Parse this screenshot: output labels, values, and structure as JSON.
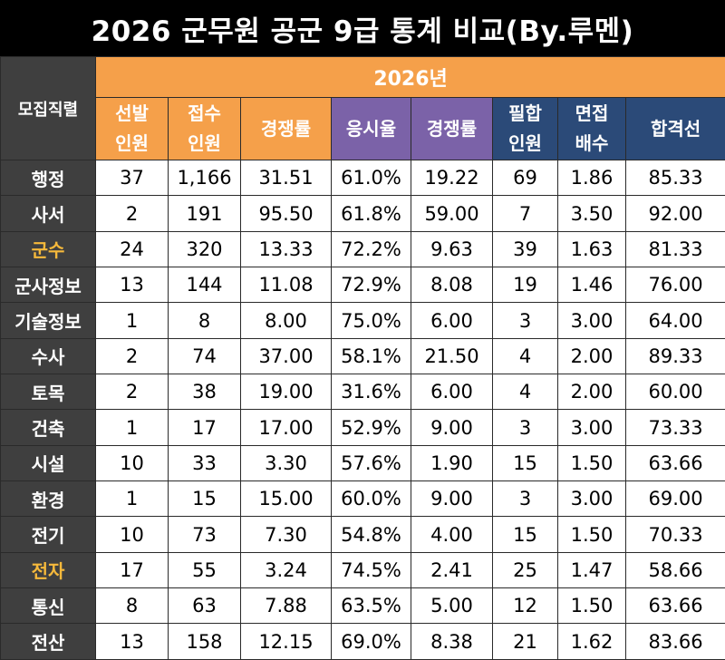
{
  "title": "2026 군무원 공군 9급 통계 비교(By.루멘)",
  "year_header": "2026년",
  "corner_label": "모집직렬",
  "columns": [
    {
      "label1": "선발",
      "label2": "인원",
      "group": "orange"
    },
    {
      "label1": "접수",
      "label2": "인원",
      "group": "orange"
    },
    {
      "label1": "경쟁률",
      "label2": "",
      "group": "orange"
    },
    {
      "label1": "응시율",
      "label2": "",
      "group": "purple"
    },
    {
      "label1": "경쟁률",
      "label2": "",
      "group": "purple"
    },
    {
      "label1": "필합",
      "label2": "인원",
      "group": "navy"
    },
    {
      "label1": "면접",
      "label2": "배수",
      "group": "navy"
    },
    {
      "label1": "합격선",
      "label2": "",
      "group": "navy"
    }
  ],
  "rows": [
    {
      "name": "행정",
      "highlight": false,
      "values": [
        "37",
        "1,166",
        "31.51",
        "61.0%",
        "19.22",
        "69",
        "1.86",
        "85.33"
      ]
    },
    {
      "name": "사서",
      "highlight": false,
      "values": [
        "2",
        "191",
        "95.50",
        "61.8%",
        "59.00",
        "7",
        "3.50",
        "92.00"
      ]
    },
    {
      "name": "군수",
      "highlight": true,
      "values": [
        "24",
        "320",
        "13.33",
        "72.2%",
        "9.63",
        "39",
        "1.63",
        "81.33"
      ]
    },
    {
      "name": "군사정보",
      "highlight": false,
      "values": [
        "13",
        "144",
        "11.08",
        "72.9%",
        "8.08",
        "19",
        "1.46",
        "76.00"
      ]
    },
    {
      "name": "기술정보",
      "highlight": false,
      "values": [
        "1",
        "8",
        "8.00",
        "75.0%",
        "6.00",
        "3",
        "3.00",
        "64.00"
      ]
    },
    {
      "name": "수사",
      "highlight": false,
      "values": [
        "2",
        "74",
        "37.00",
        "58.1%",
        "21.50",
        "4",
        "2.00",
        "89.33"
      ]
    },
    {
      "name": "토목",
      "highlight": false,
      "values": [
        "2",
        "38",
        "19.00",
        "31.6%",
        "6.00",
        "4",
        "2.00",
        "60.00"
      ]
    },
    {
      "name": "건축",
      "highlight": false,
      "values": [
        "1",
        "17",
        "17.00",
        "52.9%",
        "9.00",
        "3",
        "3.00",
        "73.33"
      ]
    },
    {
      "name": "시설",
      "highlight": false,
      "values": [
        "10",
        "33",
        "3.30",
        "57.6%",
        "1.90",
        "15",
        "1.50",
        "63.66"
      ]
    },
    {
      "name": "환경",
      "highlight": false,
      "values": [
        "1",
        "15",
        "15.00",
        "60.0%",
        "9.00",
        "3",
        "3.00",
        "69.00"
      ]
    },
    {
      "name": "전기",
      "highlight": false,
      "values": [
        "10",
        "73",
        "7.30",
        "54.8%",
        "4.00",
        "15",
        "1.50",
        "70.33"
      ]
    },
    {
      "name": "전자",
      "highlight": true,
      "values": [
        "17",
        "55",
        "3.24",
        "74.5%",
        "2.41",
        "25",
        "1.47",
        "58.66"
      ]
    },
    {
      "name": "통신",
      "highlight": false,
      "values": [
        "8",
        "63",
        "7.88",
        "63.5%",
        "5.00",
        "12",
        "1.50",
        "63.66"
      ]
    },
    {
      "name": "전산",
      "highlight": false,
      "values": [
        "13",
        "158",
        "12.15",
        "69.0%",
        "8.38",
        "21",
        "1.62",
        "83.66"
      ]
    }
  ],
  "colors": {
    "orange": "#f5a04a",
    "purple": "#7b62a8",
    "navy": "#2b4a78",
    "row_label_bg": "#3f3f3f",
    "highlight_text": "#f6b93b"
  }
}
